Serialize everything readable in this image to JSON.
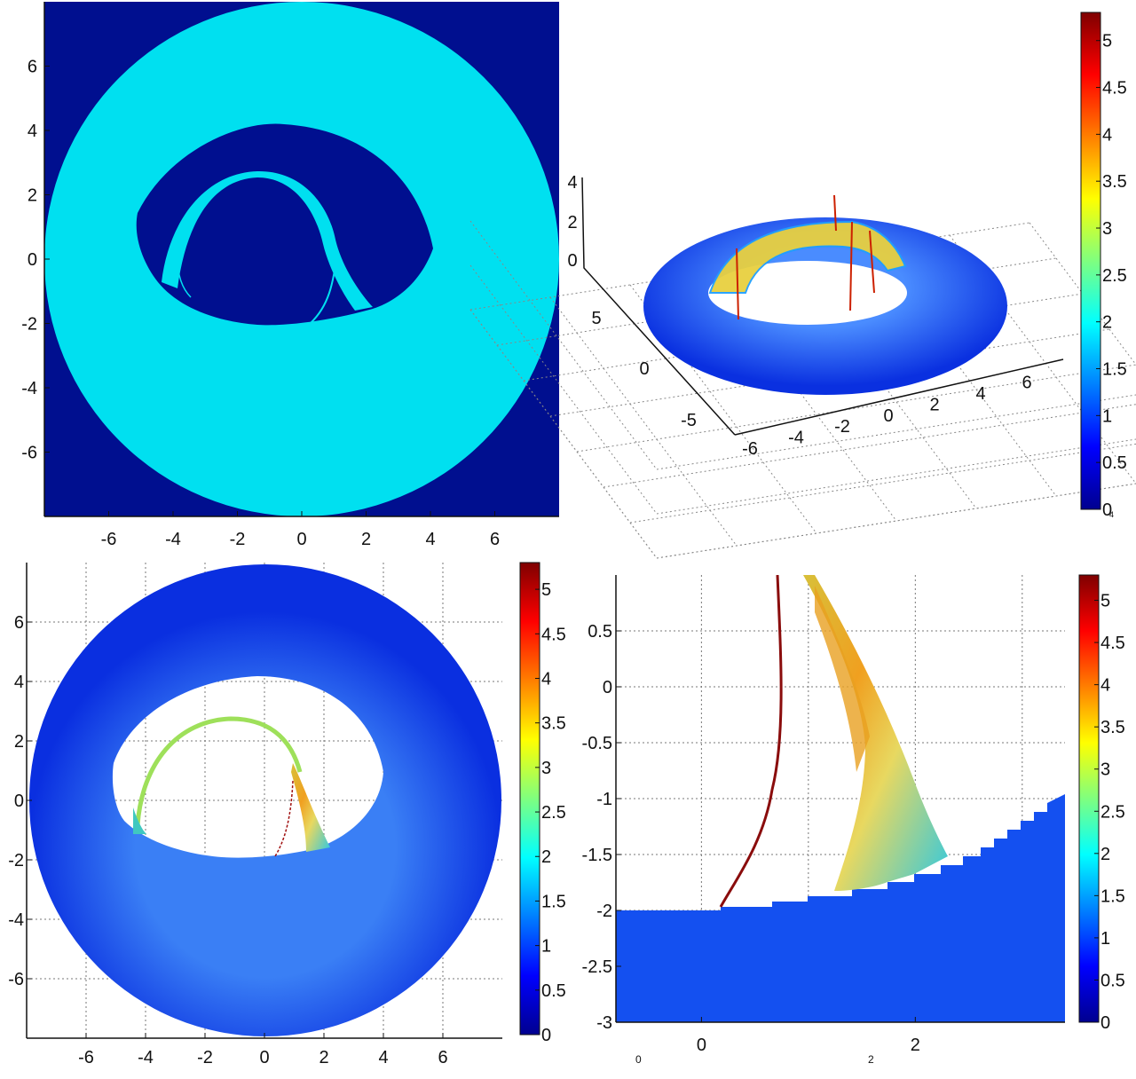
{
  "colormap": [
    "#00008f",
    "#0000ff",
    "#007fff",
    "#00ffff",
    "#7fff7f",
    "#ffff00",
    "#ff7f00",
    "#ff0000",
    "#7f0000"
  ],
  "color_range": [
    0,
    5.3
  ],
  "chart_data": [
    {
      "id": "top-left",
      "type": "heatmap",
      "title": "",
      "xlabel": "",
      "ylabel": "",
      "xlim": [
        -8,
        8
      ],
      "ylim": [
        -8,
        8
      ],
      "xticks": [
        -6,
        -4,
        -2,
        0,
        2,
        4,
        6
      ],
      "yticks": [
        6,
        4,
        2,
        0,
        -2,
        -4,
        -6
      ],
      "xtick_labels": [
        "-6",
        "-4",
        "-2",
        "0",
        "2",
        "4",
        "6"
      ],
      "ytick_labels": [
        "6",
        "4",
        "2",
        "0",
        "-2",
        "-4",
        "-6"
      ],
      "grid": false,
      "annulus": {
        "center": [
          0,
          0
        ],
        "outer_radius": 8,
        "inner_ellipse": {
          "cx": 0,
          "cy": 1.1,
          "rx": 4.6,
          "ry": 4.2
        }
      },
      "background_color": "#000f8f",
      "fill_color": "#00e0f0"
    },
    {
      "id": "top-right",
      "type": "surface",
      "title": "",
      "xticks": [
        -6,
        -4,
        -2,
        0,
        2,
        4,
        6
      ],
      "yticks": [
        5,
        0,
        -5
      ],
      "zticks": [
        4,
        2,
        0
      ],
      "xtick_labels": [
        "-6",
        "-4",
        "-2",
        "0",
        "2",
        "4",
        "6"
      ],
      "ytick_labels": [
        "5",
        "0",
        "-5"
      ],
      "ztick_labels": [
        "4",
        "2",
        "0"
      ],
      "grid": true,
      "colorbar": {
        "ticks": [
          5,
          4.5,
          4,
          3.5,
          3,
          2.5,
          2,
          1.5,
          1,
          0.5,
          0
        ],
        "labels": [
          "5",
          "4.5",
          "4",
          "3.5",
          "3",
          "2.5",
          "2",
          "1.5",
          "1",
          "0.5",
          "0"
        ]
      }
    },
    {
      "id": "bottom-left",
      "type": "heatmap",
      "title": "",
      "xlim": [
        -8,
        8
      ],
      "ylim": [
        -8,
        8
      ],
      "xticks": [
        -6,
        -4,
        -2,
        0,
        2,
        4,
        6
      ],
      "yticks": [
        6,
        4,
        2,
        0,
        -2,
        -4,
        -6
      ],
      "xtick_labels": [
        "-6",
        "-4",
        "-2",
        "0",
        "2",
        "4",
        "6"
      ],
      "ytick_labels": [
        "6",
        "4",
        "2",
        "0",
        "-2",
        "-4",
        "-6"
      ],
      "grid": true,
      "colorbar": {
        "ticks": [
          5,
          4.5,
          4,
          3.5,
          3,
          2.5,
          2,
          1.5,
          1,
          0.5,
          0
        ],
        "labels": [
          "5",
          "4.5",
          "4",
          "3.5",
          "3",
          "2.5",
          "2",
          "1.5",
          "1",
          "0.5",
          "0"
        ]
      }
    },
    {
      "id": "bottom-right",
      "type": "heatmap",
      "title": "",
      "xlim": [
        -0.8,
        3.4
      ],
      "ylim": [
        -3,
        1
      ],
      "xticks": [
        0,
        2
      ],
      "yticks": [
        0.5,
        0,
        -0.5,
        -1,
        -1.5,
        -2,
        -2.5,
        -3
      ],
      "xtick_labels": [
        "0",
        "2"
      ],
      "ytick_labels": [
        "0.5",
        "0",
        "-0.5",
        "-1",
        "-1.5",
        "-2",
        "-2.5",
        "-3"
      ],
      "grid": true,
      "colorbar": {
        "ticks": [
          5,
          4.5,
          4,
          3.5,
          3,
          2.5,
          2,
          1.5,
          1,
          0.5,
          0
        ],
        "labels": [
          "5",
          "4.5",
          "4",
          "3.5",
          "3",
          "2.5",
          "2",
          "1.5",
          "1",
          "0.5",
          "0"
        ]
      },
      "extra_labels": [
        "0",
        "2",
        "4"
      ]
    }
  ]
}
